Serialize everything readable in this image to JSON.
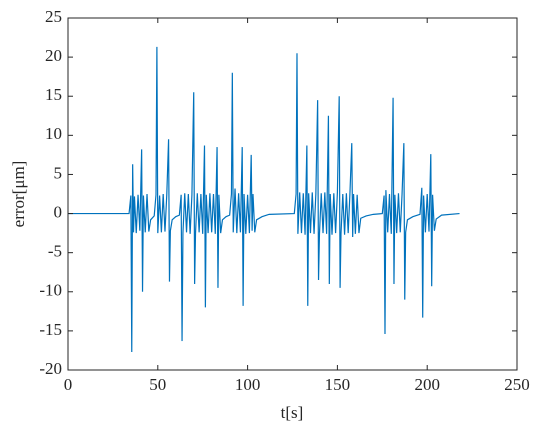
{
  "chart_data": {
    "type": "line",
    "xlabel": "t[s]",
    "ylabel": "error[μm]",
    "xlim": [
      0,
      250
    ],
    "xticks": [
      0,
      50,
      100,
      150,
      200,
      250
    ],
    "ylim": [
      -20,
      25
    ],
    "yticks": [
      -20,
      -15,
      -10,
      -5,
      0,
      5,
      10,
      15,
      20,
      25
    ],
    "color": "#0072bd",
    "x": [
      0,
      34,
      35,
      35.5,
      36,
      36.5,
      37,
      38,
      39,
      40,
      41,
      41.5,
      42,
      43,
      44,
      45,
      46,
      48,
      49,
      49.5,
      50,
      51,
      52,
      53,
      54,
      55,
      56,
      56.5,
      57,
      58,
      60,
      62,
      63,
      63.5,
      64,
      65,
      66,
      67,
      68,
      69,
      70,
      70.5,
      71,
      72,
      73,
      74,
      75,
      76,
      76.5,
      77,
      78,
      79,
      80,
      81,
      82,
      83,
      83.5,
      84,
      85,
      86,
      88,
      90,
      91,
      91.5,
      92,
      93,
      94,
      95,
      96,
      97,
      97.5,
      98,
      99,
      100,
      101,
      102,
      102.5,
      103,
      104,
      105,
      108,
      112,
      126,
      127,
      127.5,
      128,
      129,
      130,
      131,
      132,
      133,
      133.5,
      134,
      135,
      136,
      137,
      138,
      139,
      139.5,
      140,
      141,
      142,
      143,
      144,
      145,
      145.5,
      146,
      147,
      148,
      149,
      150,
      151,
      151.5,
      152,
      153,
      154,
      155,
      156,
      157,
      158,
      158.5,
      159,
      160,
      161,
      162,
      163,
      166,
      170,
      175,
      176,
      176.5,
      177,
      178,
      179,
      180,
      181,
      181.5,
      182,
      183,
      184,
      185,
      186,
      187,
      187.5,
      188,
      189,
      192,
      196,
      197,
      197.5,
      198,
      199,
      200,
      201,
      202,
      202.5,
      203,
      204,
      205,
      208,
      218
    ],
    "values": [
      0,
      0,
      2.3,
      -17.7,
      6.3,
      -2.4,
      2.2,
      -2.5,
      2.4,
      -2.2,
      8.2,
      -10,
      2.3,
      -2.4,
      2.5,
      -2.3,
      -0.8,
      -0.3,
      2.4,
      21.3,
      -2.5,
      2.3,
      -2.4,
      2.5,
      -2.3,
      2.4,
      9.5,
      -8.7,
      -2.2,
      -0.8,
      -0.4,
      -0.2,
      2.4,
      -16.3,
      -2.5,
      2.6,
      -2.4,
      2.5,
      -2.6,
      2.4,
      15.5,
      -9,
      -2.5,
      2.6,
      -2.4,
      2.5,
      -2.6,
      8.7,
      -12,
      2.4,
      -2.5,
      2.6,
      -2.4,
      2.5,
      -2.6,
      8.5,
      -9.5,
      2.4,
      -2.5,
      -0.8,
      -0.4,
      -0.2,
      2.5,
      18,
      -2.4,
      3.2,
      -2.5,
      2.6,
      -2.4,
      8.5,
      -11.8,
      2.5,
      -2.6,
      2.4,
      -2.5,
      7.5,
      -2.2,
      2.5,
      -2.4,
      -0.8,
      -0.4,
      -0.1,
      0,
      2.5,
      20.5,
      -2.6,
      2.7,
      -2.5,
      2.6,
      -2.7,
      8.7,
      -11.8,
      2.6,
      -2.5,
      2.7,
      -2.6,
      2.5,
      14.5,
      -8.5,
      -2.7,
      2.6,
      -2.5,
      2.7,
      -2.6,
      12.5,
      -9,
      2.5,
      -2.7,
      2.6,
      -2.5,
      2.7,
      15,
      -9.5,
      -2.6,
      2.5,
      -2.7,
      2.6,
      -2.5,
      2.7,
      9,
      -3,
      2.5,
      -2.6,
      2.4,
      -2.5,
      -0.6,
      -0.3,
      -0.1,
      0,
      2.3,
      -15.4,
      3,
      -2.4,
      2.5,
      -2.6,
      14.8,
      -9,
      2.4,
      -2.5,
      2.6,
      -2.4,
      2.5,
      9,
      -11,
      -2.4,
      -0.8,
      -0.4,
      -0.1,
      3.3,
      -13.3,
      2.3,
      -2.4,
      2.5,
      -2.3,
      7.6,
      -9.3,
      2.4,
      -2.2,
      -0.7,
      -0.2,
      0
    ]
  }
}
